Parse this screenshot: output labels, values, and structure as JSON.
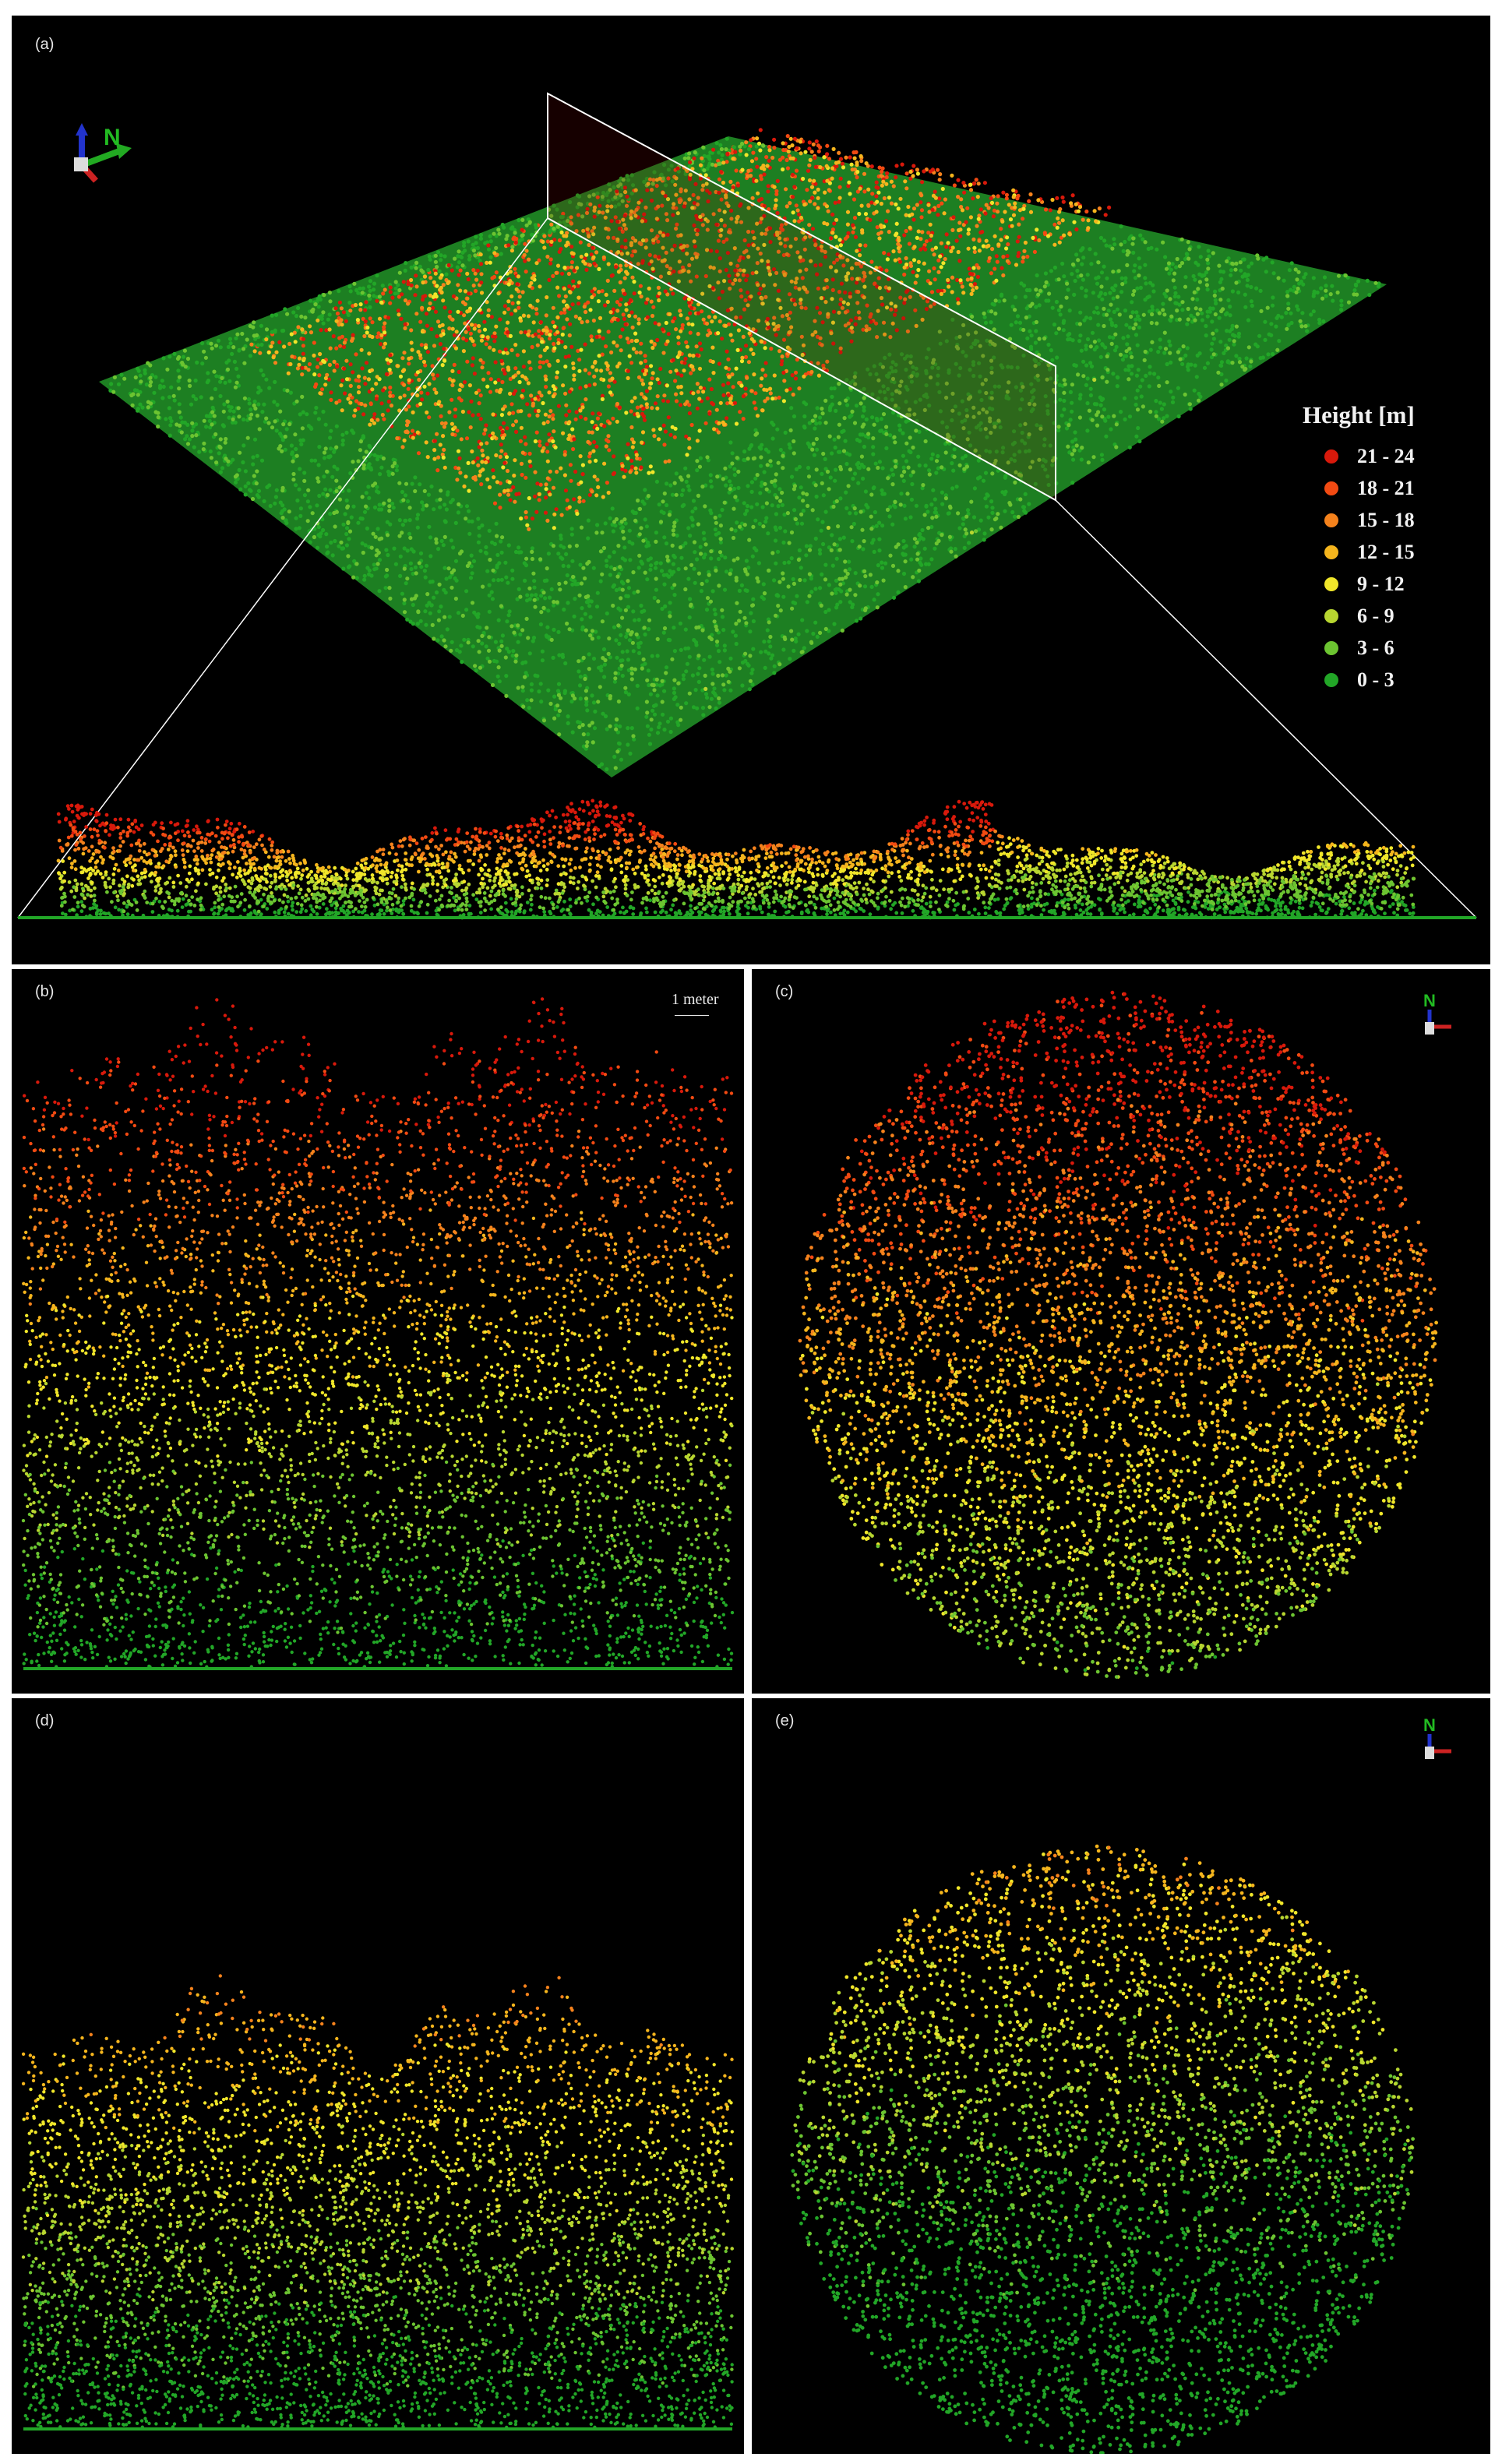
{
  "panels": [
    {
      "id": "a",
      "label": "(a)"
    },
    {
      "id": "b",
      "label": "(b)"
    },
    {
      "id": "c",
      "label": "(c)"
    },
    {
      "id": "d",
      "label": "(d)"
    },
    {
      "id": "e",
      "label": "(e)"
    }
  ],
  "legend": {
    "title": "Height [m]",
    "classes": [
      {
        "label": "21 - 24",
        "color": "#d8190b"
      },
      {
        "label": "18 - 21",
        "color": "#f24a12"
      },
      {
        "label": "15 - 18",
        "color": "#f5821c"
      },
      {
        "label": "12 - 15",
        "color": "#f5b51d"
      },
      {
        "label": "9 - 12",
        "color": "#f0e62a"
      },
      {
        "label": "6 - 9",
        "color": "#b8d630"
      },
      {
        "label": "3 - 6",
        "color": "#6cc431"
      },
      {
        "label": "0 - 3",
        "color": "#22a627"
      }
    ]
  },
  "scale_bar": {
    "label": "1 meter"
  },
  "north_arrow": {
    "label": "N"
  }
}
